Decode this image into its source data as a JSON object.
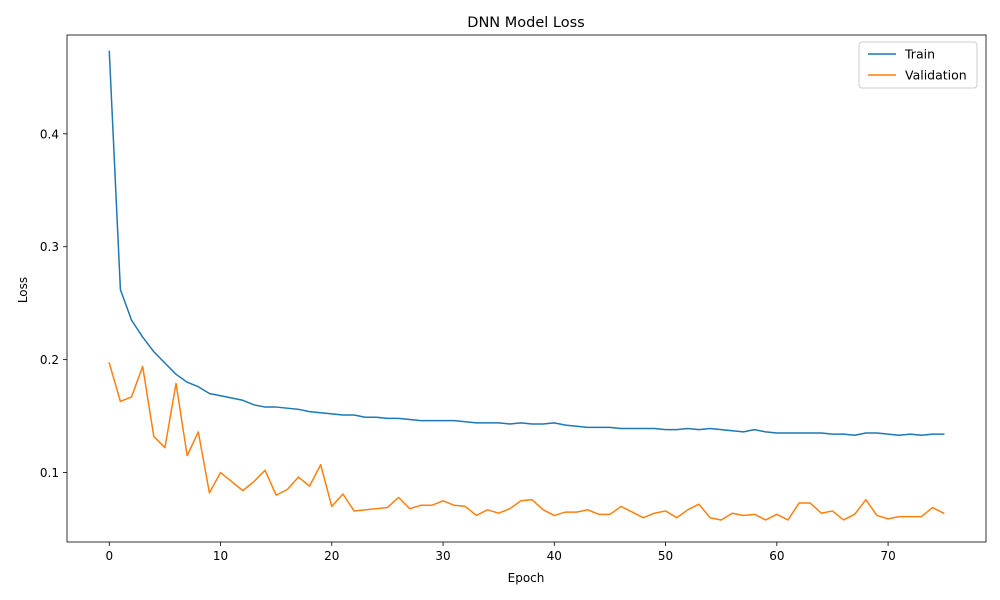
{
  "chart_data": {
    "type": "line",
    "title": "DNN Model Loss",
    "xlabel": "Epoch",
    "ylabel": "Loss",
    "xlim": [
      -3.8,
      78.8
    ],
    "ylim": [
      0.0385,
      0.4875
    ],
    "xticks": [
      0,
      10,
      20,
      30,
      40,
      50,
      60,
      70
    ],
    "yticks": [
      0.1,
      0.2,
      0.3,
      0.4
    ],
    "grid": false,
    "legend_position": "top-right",
    "series": [
      {
        "name": "Train",
        "color": "#1f77b4",
        "values": [
          0.473,
          0.262,
          0.235,
          0.22,
          0.207,
          0.197,
          0.187,
          0.18,
          0.176,
          0.17,
          0.168,
          0.166,
          0.164,
          0.16,
          0.158,
          0.158,
          0.157,
          0.156,
          0.154,
          0.153,
          0.152,
          0.151,
          0.151,
          0.149,
          0.149,
          0.148,
          0.148,
          0.147,
          0.146,
          0.146,
          0.146,
          0.146,
          0.145,
          0.144,
          0.144,
          0.144,
          0.143,
          0.144,
          0.143,
          0.143,
          0.144,
          0.142,
          0.141,
          0.14,
          0.14,
          0.14,
          0.139,
          0.139,
          0.139,
          0.139,
          0.138,
          0.138,
          0.139,
          0.138,
          0.139,
          0.138,
          0.137,
          0.136,
          0.138,
          0.136,
          0.135,
          0.135,
          0.135,
          0.135,
          0.135,
          0.134,
          0.134,
          0.133,
          0.135,
          0.135,
          0.134,
          0.133,
          0.134,
          0.133,
          0.134,
          0.134
        ]
      },
      {
        "name": "Validation",
        "color": "#ff7f0e",
        "values": [
          0.197,
          0.163,
          0.167,
          0.194,
          0.132,
          0.122,
          0.179,
          0.115,
          0.136,
          0.082,
          0.1,
          0.092,
          0.084,
          0.092,
          0.102,
          0.08,
          0.085,
          0.096,
          0.088,
          0.107,
          0.07,
          0.081,
          0.066,
          0.067,
          0.068,
          0.069,
          0.078,
          0.068,
          0.071,
          0.071,
          0.075,
          0.071,
          0.07,
          0.062,
          0.067,
          0.064,
          0.068,
          0.075,
          0.076,
          0.067,
          0.062,
          0.065,
          0.065,
          0.067,
          0.063,
          0.063,
          0.07,
          0.065,
          0.06,
          0.064,
          0.066,
          0.06,
          0.067,
          0.072,
          0.06,
          0.058,
          0.064,
          0.062,
          0.063,
          0.058,
          0.063,
          0.058,
          0.073,
          0.073,
          0.064,
          0.066,
          0.058,
          0.063,
          0.076,
          0.062,
          0.059,
          0.061,
          0.061,
          0.061,
          0.069,
          0.064
        ]
      }
    ]
  }
}
